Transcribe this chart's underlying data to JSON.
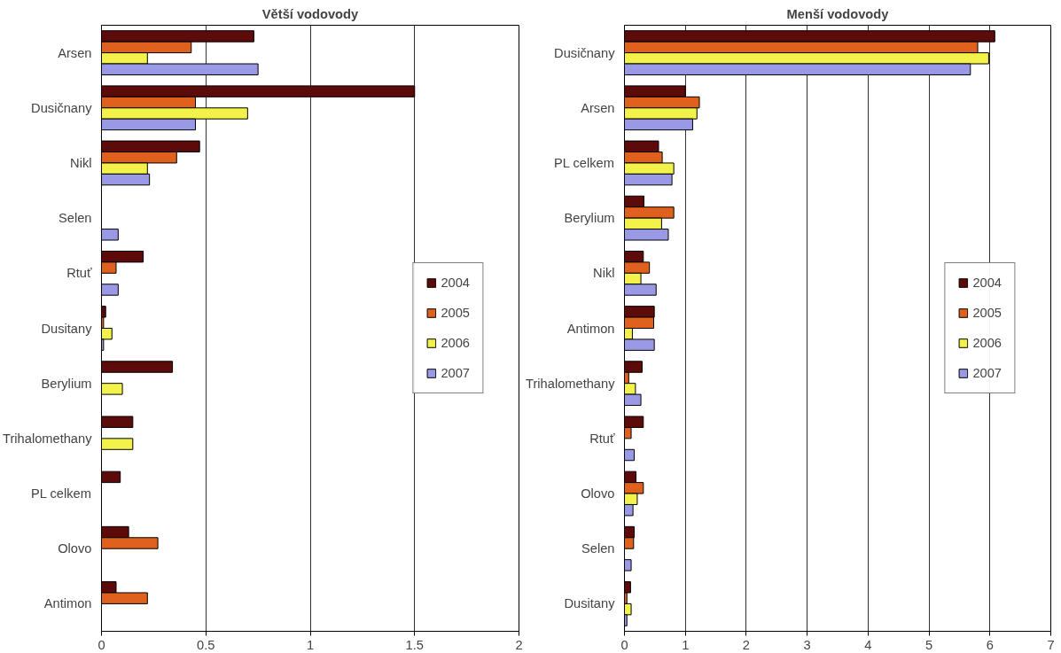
{
  "chart_data": [
    {
      "type": "bar",
      "orientation": "horizontal",
      "title": "Větší vodovody",
      "categories": [
        "Arsen",
        "Dusičnany",
        "Nikl",
        "Selen",
        "Rtuť",
        "Dusitany",
        "Berylium",
        "Trihalomethany",
        "PL celkem",
        "Olovo",
        "Antimon"
      ],
      "series": [
        {
          "name": "2004",
          "color": "#5c0a0a",
          "values": [
            0.73,
            1.5,
            0.47,
            null,
            0.2,
            0.02,
            0.34,
            0.15,
            0.09,
            0.13,
            0.07
          ]
        },
        {
          "name": "2005",
          "color": "#e0601e",
          "values": [
            0.43,
            0.45,
            0.36,
            null,
            0.07,
            0.01,
            null,
            null,
            null,
            0.27,
            0.22
          ]
        },
        {
          "name": "2006",
          "color": "#f2f24a",
          "values": [
            0.22,
            0.7,
            0.22,
            null,
            null,
            0.05,
            0.1,
            0.15,
            null,
            null,
            null
          ]
        },
        {
          "name": "2007",
          "color": "#9999e6",
          "values": [
            0.75,
            0.45,
            0.23,
            0.08,
            0.08,
            0.01,
            null,
            null,
            null,
            null,
            null
          ]
        }
      ],
      "xlim": [
        0,
        2
      ],
      "xticks": [
        0,
        0.5,
        1,
        1.5,
        2
      ],
      "grid": "x",
      "legend": "right"
    },
    {
      "type": "bar",
      "orientation": "horizontal",
      "title": "Menší vodovody",
      "categories": [
        "Dusičnany",
        "Arsen",
        "PL celkem",
        "Berylium",
        "Nikl",
        "Antimon",
        "Trihalomethany",
        "Rtuť",
        "Olovo",
        "Selen",
        "Dusitany"
      ],
      "series": [
        {
          "name": "2004",
          "color": "#5c0a0a",
          "values": [
            6.08,
            1.0,
            0.56,
            0.32,
            0.31,
            0.49,
            0.29,
            0.31,
            0.19,
            0.16,
            0.1
          ]
        },
        {
          "name": "2005",
          "color": "#e0601e",
          "values": [
            5.8,
            1.23,
            0.62,
            0.81,
            0.41,
            0.48,
            0.07,
            0.11,
            0.31,
            0.15,
            0.04
          ]
        },
        {
          "name": "2006",
          "color": "#f2f24a",
          "values": [
            5.98,
            1.19,
            0.81,
            0.61,
            0.27,
            0.13,
            0.18,
            null,
            0.21,
            null,
            0.11
          ]
        },
        {
          "name": "2007",
          "color": "#9999e6",
          "values": [
            5.68,
            1.12,
            0.78,
            0.72,
            0.52,
            0.49,
            0.27,
            0.16,
            0.14,
            0.11,
            0.04
          ]
        }
      ],
      "xlim": [
        0,
        7
      ],
      "xticks": [
        0,
        1,
        2,
        3,
        4,
        5,
        6,
        7
      ],
      "grid": "x",
      "legend": "right"
    }
  ]
}
